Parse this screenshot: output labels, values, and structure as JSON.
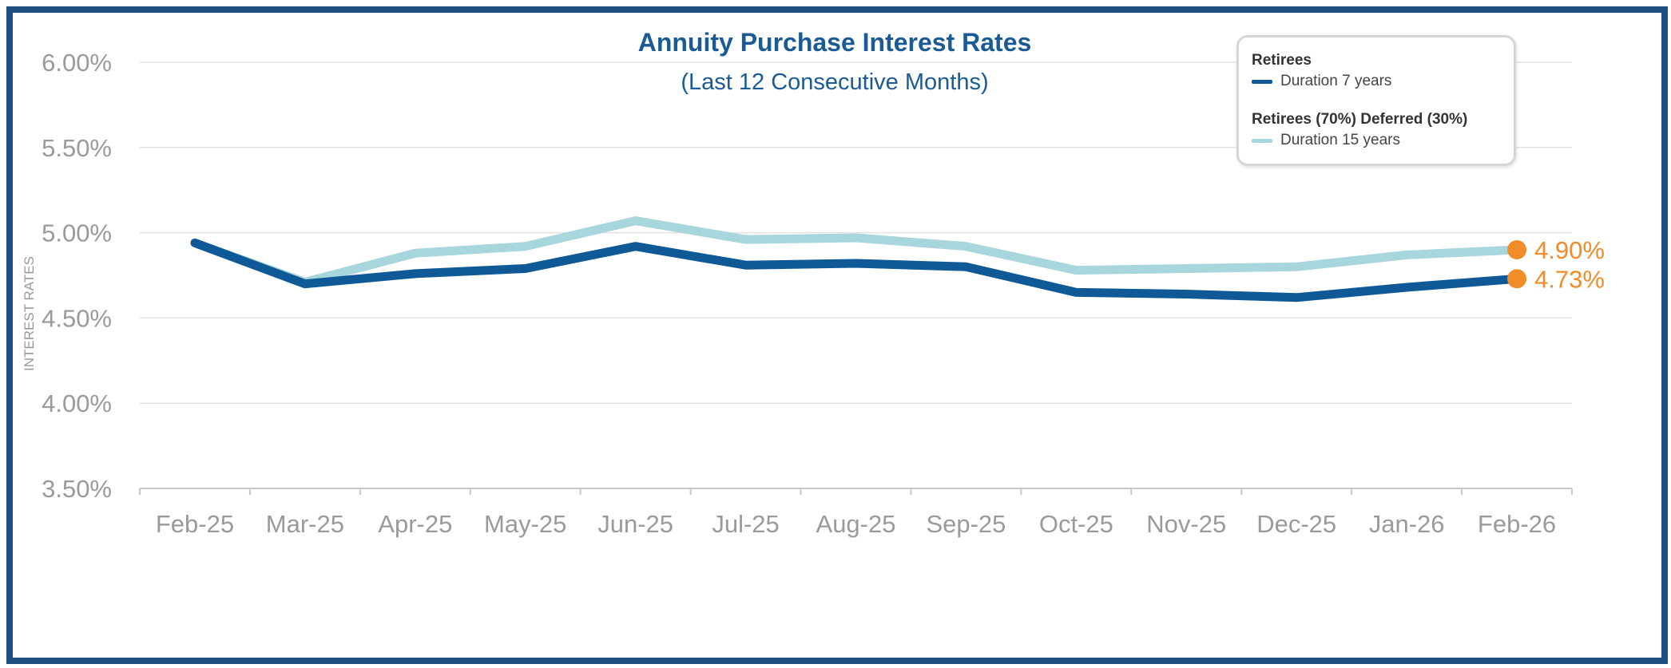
{
  "chart_data": {
    "type": "line",
    "title": "Annuity Purchase Interest Rates",
    "subtitle": "(Last 12 Consecutive Months)",
    "xlabel": "",
    "ylabel": "INTEREST RATES",
    "categories": [
      "Feb-25",
      "Mar-25",
      "Apr-25",
      "May-25",
      "Jun-25",
      "Jul-25",
      "Aug-25",
      "Sep-25",
      "Oct-25",
      "Nov-25",
      "Dec-25",
      "Jan-26",
      "Feb-26"
    ],
    "ylim": [
      3.5,
      6.0
    ],
    "yticks": [
      3.5,
      4.0,
      4.5,
      5.0,
      5.5,
      6.0
    ],
    "ytick_labels": [
      "3.50%",
      "4.00%",
      "4.50%",
      "5.00%",
      "5.50%",
      "6.00%"
    ],
    "grid": true,
    "legend_position": "top-right",
    "series": [
      {
        "name": "Retirees",
        "detail": "Duration 7 years",
        "color": "#0f5a96",
        "values": [
          4.94,
          4.7,
          4.76,
          4.79,
          4.92,
          4.81,
          4.82,
          4.8,
          4.65,
          4.64,
          4.62,
          4.68,
          4.73
        ],
        "end_label": "4.73%"
      },
      {
        "name": "Retirees (70%) Deferred (30%)",
        "detail": "Duration 15 years",
        "color": "#a8d6dd",
        "values": [
          4.94,
          4.71,
          4.88,
          4.92,
          5.07,
          4.96,
          4.97,
          4.92,
          4.78,
          4.79,
          4.8,
          4.87,
          4.9
        ],
        "end_label": "4.90%"
      }
    ],
    "marker_color": "#f28c28"
  }
}
